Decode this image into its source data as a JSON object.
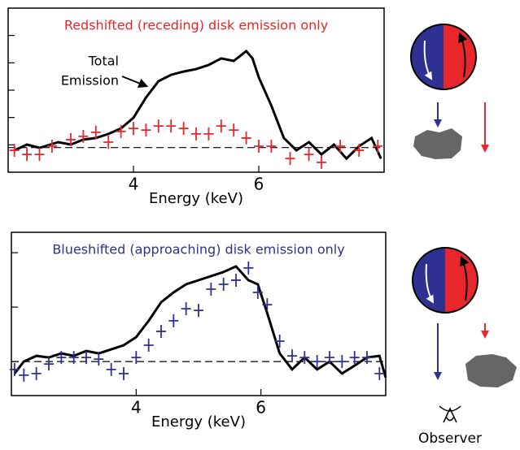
{
  "chart_data": [
    {
      "type": "line",
      "title": "Redshifted (receding) disk emission only",
      "title_color": "#e8262b",
      "annotation_lines": [
        "Total",
        "Emission"
      ],
      "x_label": "Energy (keV)",
      "xlim": [
        2,
        8
      ],
      "xticks": [
        4,
        6
      ],
      "ylim": [
        0,
        6
      ],
      "yticks": [
        1,
        2,
        3,
        4,
        5
      ],
      "baseline": 0.9,
      "series": [
        {
          "style": "line",
          "color": "#000000",
          "x": [
            2.1,
            2.3,
            2.5,
            2.8,
            3.0,
            3.2,
            3.4,
            3.6,
            3.8,
            4.0,
            4.2,
            4.4,
            4.6,
            4.8,
            5.0,
            5.2,
            5.4,
            5.6,
            5.8,
            5.9,
            6.0,
            6.2,
            6.4,
            6.6,
            6.8,
            7.0,
            7.2,
            7.4,
            7.6,
            7.8,
            7.95
          ],
          "values": [
            0.8,
            1.01,
            0.89,
            1.1,
            1.01,
            1.19,
            1.25,
            1.4,
            1.6,
            1.99,
            2.73,
            3.33,
            3.56,
            3.68,
            3.77,
            3.92,
            4.16,
            4.07,
            4.43,
            4.16,
            3.47,
            2.44,
            1.25,
            0.8,
            1.1,
            0.65,
            1.01,
            0.5,
            0.95,
            1.25,
            0.5
          ]
        },
        {
          "style": "cross",
          "color": "#e8262b",
          "x": [
            2.1,
            2.3,
            2.5,
            2.7,
            3.0,
            3.2,
            3.4,
            3.6,
            3.8,
            4.0,
            4.2,
            4.4,
            4.6,
            4.8,
            5.0,
            5.2,
            5.4,
            5.6,
            5.8,
            6.0,
            6.2,
            6.5,
            6.8,
            7.0,
            7.3,
            7.6,
            7.9
          ],
          "values": [
            0.8,
            0.65,
            0.65,
            0.95,
            1.19,
            1.31,
            1.46,
            1.1,
            1.49,
            1.6,
            1.54,
            1.69,
            1.69,
            1.6,
            1.4,
            1.4,
            1.69,
            1.54,
            1.25,
            0.95,
            0.95,
            0.5,
            0.65,
            0.36,
            0.95,
            0.8,
            0.95
          ]
        }
      ]
    },
    {
      "type": "line",
      "title": "Blueshifted (approaching) disk emission only",
      "title_color": "#2e3192",
      "x_label": "Energy (keV)",
      "xlim": [
        2,
        8
      ],
      "xticks": [
        4,
        6
      ],
      "ylim": [
        -0.25,
        5.75
      ],
      "yticks": [
        1,
        3,
        5
      ],
      "baseline": 1,
      "series": [
        {
          "style": "line",
          "color": "#000000",
          "x": [
            2.05,
            2.2,
            2.4,
            2.6,
            2.8,
            3.0,
            3.2,
            3.4,
            3.6,
            3.8,
            4.0,
            4.2,
            4.4,
            4.6,
            4.8,
            5.0,
            5.2,
            5.4,
            5.6,
            5.8,
            5.95,
            6.1,
            6.3,
            6.5,
            6.7,
            6.9,
            7.1,
            7.3,
            7.5,
            7.7,
            7.9,
            8.0
          ],
          "values": [
            0.56,
            1.0,
            1.21,
            1.15,
            1.3,
            1.21,
            1.39,
            1.3,
            1.45,
            1.6,
            1.9,
            2.5,
            3.18,
            3.54,
            3.84,
            3.99,
            4.14,
            4.29,
            4.5,
            3.99,
            3.84,
            2.79,
            1.3,
            0.71,
            1.15,
            0.71,
            1.0,
            0.56,
            0.85,
            1.15,
            1.21,
            0.41
          ]
        },
        {
          "style": "cross",
          "color": "#2e3192",
          "x": [
            2.05,
            2.2,
            2.4,
            2.6,
            2.8,
            3.0,
            3.2,
            3.4,
            3.6,
            3.8,
            4.0,
            4.2,
            4.4,
            4.6,
            4.8,
            5.0,
            5.2,
            5.4,
            5.6,
            5.8,
            5.95,
            6.1,
            6.3,
            6.5,
            6.7,
            6.9,
            7.1,
            7.3,
            7.5,
            7.7,
            7.9
          ],
          "values": [
            0.71,
            0.5,
            0.56,
            0.91,
            1.15,
            1.15,
            1.15,
            1.09,
            0.71,
            0.56,
            1.15,
            1.6,
            2.11,
            2.5,
            2.94,
            2.88,
            3.66,
            3.84,
            3.99,
            4.44,
            3.54,
            3.09,
            1.75,
            1.21,
            1.15,
            1.0,
            1.15,
            1.0,
            1.15,
            1.15,
            0.56
          ]
        }
      ]
    }
  ],
  "observer_label": "Observer"
}
